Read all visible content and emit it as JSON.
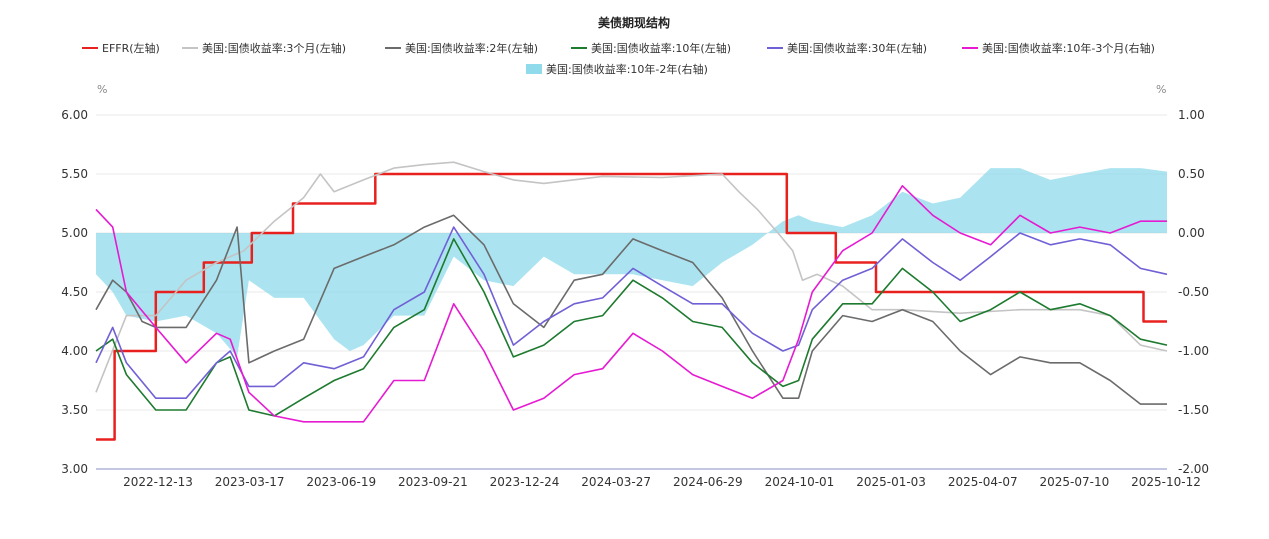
{
  "chart_data": {
    "type": "line",
    "title": "美债期现结构",
    "y_left": {
      "unit": "%",
      "ylim": [
        3.0,
        6.0
      ],
      "ticks": [
        "3.00",
        "3.50",
        "4.00",
        "4.50",
        "5.00",
        "5.50",
        "6.00"
      ]
    },
    "y_right": {
      "unit": "%",
      "ylim": [
        -2.0,
        1.0
      ],
      "ticks": [
        "-2.00",
        "-1.50",
        "-1.00",
        "-0.50",
        "0.00",
        "0.50",
        "1.00"
      ]
    },
    "x_ticks": [
      "2022-12-13",
      "2023-03-17",
      "2023-06-19",
      "2023-09-21",
      "2023-12-24",
      "2024-03-27",
      "2024-06-29",
      "2024-10-01",
      "2025-01-03",
      "2025-04-07",
      "2025-07-10",
      "2025-10-12"
    ],
    "x_range": [
      "2022-10-15",
      "2025-10-12"
    ],
    "grid": "horizontal",
    "legend_position": "top",
    "series": [
      {
        "name": "EFFR(左轴)",
        "color": "#e8201e",
        "axis": "left",
        "kind": "step",
        "points": [
          [
            "2022-10-15",
            3.25
          ],
          [
            "2022-11-03",
            3.25
          ],
          [
            "2022-11-03",
            4.0
          ],
          [
            "2022-12-15",
            4.0
          ],
          [
            "2022-12-15",
            4.5
          ],
          [
            "2023-02-02",
            4.5
          ],
          [
            "2023-02-02",
            4.75
          ],
          [
            "2023-03-23",
            4.75
          ],
          [
            "2023-03-23",
            5.0
          ],
          [
            "2023-05-04",
            5.0
          ],
          [
            "2023-05-04",
            5.25
          ],
          [
            "2023-07-27",
            5.25
          ],
          [
            "2023-07-27",
            5.5
          ],
          [
            "2024-09-19",
            5.5
          ],
          [
            "2024-09-19",
            5.0
          ],
          [
            "2024-11-08",
            5.0
          ],
          [
            "2024-11-08",
            4.75
          ],
          [
            "2024-12-19",
            4.75
          ],
          [
            "2024-12-19",
            4.5
          ],
          [
            "2025-09-18",
            4.5
          ],
          [
            "2025-09-18",
            4.25
          ],
          [
            "2025-10-12",
            4.25
          ]
        ]
      },
      {
        "name": "美国:国债收益率:3个月(左轴)",
        "color": "#c4c4c4",
        "axis": "left",
        "kind": "line",
        "points": [
          [
            "2022-10-15",
            3.65
          ],
          [
            "2022-11-15",
            4.3
          ],
          [
            "2022-12-15",
            4.3
          ],
          [
            "2023-01-15",
            4.6
          ],
          [
            "2023-02-15",
            4.75
          ],
          [
            "2023-03-15",
            4.85
          ],
          [
            "2023-04-15",
            5.1
          ],
          [
            "2023-05-15",
            5.3
          ],
          [
            "2023-06-01",
            5.5
          ],
          [
            "2023-06-15",
            5.35
          ],
          [
            "2023-07-15",
            5.45
          ],
          [
            "2023-08-15",
            5.55
          ],
          [
            "2023-09-15",
            5.58
          ],
          [
            "2023-10-15",
            5.6
          ],
          [
            "2023-11-15",
            5.52
          ],
          [
            "2023-12-15",
            5.45
          ],
          [
            "2024-01-15",
            5.42
          ],
          [
            "2024-03-15",
            5.48
          ],
          [
            "2024-05-15",
            5.47
          ],
          [
            "2024-07-15",
            5.5
          ],
          [
            "2024-08-01",
            5.35
          ],
          [
            "2024-08-20",
            5.2
          ],
          [
            "2024-09-10",
            5.0
          ],
          [
            "2024-09-25",
            4.85
          ],
          [
            "2024-10-05",
            4.6
          ],
          [
            "2024-10-20",
            4.65
          ],
          [
            "2024-11-15",
            4.55
          ],
          [
            "2024-12-15",
            4.35
          ],
          [
            "2025-01-15",
            4.35
          ],
          [
            "2025-03-15",
            4.32
          ],
          [
            "2025-05-15",
            4.35
          ],
          [
            "2025-07-15",
            4.35
          ],
          [
            "2025-08-15",
            4.3
          ],
          [
            "2025-09-15",
            4.05
          ],
          [
            "2025-10-12",
            4.0
          ]
        ]
      },
      {
        "name": "美国:国债收益率:2年(左轴)",
        "color": "#6b6b6b",
        "axis": "left",
        "kind": "line",
        "points": [
          [
            "2022-10-15",
            4.35
          ],
          [
            "2022-11-01",
            4.6
          ],
          [
            "2022-11-15",
            4.5
          ],
          [
            "2022-12-01",
            4.25
          ],
          [
            "2022-12-15",
            4.2
          ],
          [
            "2023-01-15",
            4.2
          ],
          [
            "2023-02-15",
            4.6
          ],
          [
            "2023-03-08",
            5.05
          ],
          [
            "2023-03-20",
            3.9
          ],
          [
            "2023-04-15",
            4.0
          ],
          [
            "2023-05-15",
            4.1
          ],
          [
            "2023-06-15",
            4.7
          ],
          [
            "2023-07-15",
            4.8
          ],
          [
            "2023-08-15",
            4.9
          ],
          [
            "2023-09-15",
            5.05
          ],
          [
            "2023-10-15",
            5.15
          ],
          [
            "2023-11-15",
            4.9
          ],
          [
            "2023-12-15",
            4.4
          ],
          [
            "2024-01-15",
            4.2
          ],
          [
            "2024-02-15",
            4.6
          ],
          [
            "2024-03-15",
            4.65
          ],
          [
            "2024-04-15",
            4.95
          ],
          [
            "2024-05-15",
            4.85
          ],
          [
            "2024-06-15",
            4.75
          ],
          [
            "2024-07-15",
            4.45
          ],
          [
            "2024-08-15",
            4.0
          ],
          [
            "2024-09-15",
            3.6
          ],
          [
            "2024-10-01",
            3.6
          ],
          [
            "2024-10-15",
            4.0
          ],
          [
            "2024-11-15",
            4.3
          ],
          [
            "2024-12-15",
            4.25
          ],
          [
            "2025-01-15",
            4.35
          ],
          [
            "2025-02-15",
            4.25
          ],
          [
            "2025-03-15",
            4.0
          ],
          [
            "2025-04-15",
            3.8
          ],
          [
            "2025-05-15",
            3.95
          ],
          [
            "2025-06-15",
            3.9
          ],
          [
            "2025-07-15",
            3.9
          ],
          [
            "2025-08-15",
            3.75
          ],
          [
            "2025-09-15",
            3.55
          ],
          [
            "2025-10-12",
            3.55
          ]
        ]
      },
      {
        "name": "美国:国债收益率:10年(左轴)",
        "color": "#1d7a2f",
        "axis": "left",
        "kind": "line",
        "points": [
          [
            "2022-10-15",
            4.0
          ],
          [
            "2022-11-01",
            4.1
          ],
          [
            "2022-11-15",
            3.8
          ],
          [
            "2022-12-15",
            3.5
          ],
          [
            "2023-01-15",
            3.5
          ],
          [
            "2023-02-15",
            3.9
          ],
          [
            "2023-03-01",
            3.95
          ],
          [
            "2023-03-20",
            3.5
          ],
          [
            "2023-04-15",
            3.45
          ],
          [
            "2023-05-15",
            3.6
          ],
          [
            "2023-06-15",
            3.75
          ],
          [
            "2023-07-15",
            3.85
          ],
          [
            "2023-08-15",
            4.2
          ],
          [
            "2023-09-15",
            4.35
          ],
          [
            "2023-10-15",
            4.95
          ],
          [
            "2023-11-15",
            4.5
          ],
          [
            "2023-12-15",
            3.95
          ],
          [
            "2024-01-15",
            4.05
          ],
          [
            "2024-02-15",
            4.25
          ],
          [
            "2024-03-15",
            4.3
          ],
          [
            "2024-04-15",
            4.6
          ],
          [
            "2024-05-15",
            4.45
          ],
          [
            "2024-06-15",
            4.25
          ],
          [
            "2024-07-15",
            4.2
          ],
          [
            "2024-08-15",
            3.9
          ],
          [
            "2024-09-15",
            3.7
          ],
          [
            "2024-10-01",
            3.75
          ],
          [
            "2024-10-15",
            4.1
          ],
          [
            "2024-11-15",
            4.4
          ],
          [
            "2024-12-15",
            4.4
          ],
          [
            "2025-01-15",
            4.7
          ],
          [
            "2025-02-15",
            4.5
          ],
          [
            "2025-03-15",
            4.25
          ],
          [
            "2025-04-15",
            4.35
          ],
          [
            "2025-05-15",
            4.5
          ],
          [
            "2025-06-15",
            4.35
          ],
          [
            "2025-07-15",
            4.4
          ],
          [
            "2025-08-15",
            4.3
          ],
          [
            "2025-09-15",
            4.1
          ],
          [
            "2025-10-12",
            4.05
          ]
        ]
      },
      {
        "name": "美国:国债收益率:30年(左轴)",
        "color": "#7060d6",
        "axis": "left",
        "kind": "line",
        "points": [
          [
            "2022-10-15",
            3.9
          ],
          [
            "2022-11-01",
            4.2
          ],
          [
            "2022-11-15",
            3.9
          ],
          [
            "2022-12-15",
            3.6
          ],
          [
            "2023-01-15",
            3.6
          ],
          [
            "2023-02-15",
            3.9
          ],
          [
            "2023-03-01",
            4.0
          ],
          [
            "2023-03-20",
            3.7
          ],
          [
            "2023-04-15",
            3.7
          ],
          [
            "2023-05-15",
            3.9
          ],
          [
            "2023-06-15",
            3.85
          ],
          [
            "2023-07-15",
            3.95
          ],
          [
            "2023-08-15",
            4.35
          ],
          [
            "2023-09-15",
            4.5
          ],
          [
            "2023-10-15",
            5.05
          ],
          [
            "2023-11-15",
            4.65
          ],
          [
            "2023-12-15",
            4.05
          ],
          [
            "2024-01-15",
            4.25
          ],
          [
            "2024-02-15",
            4.4
          ],
          [
            "2024-03-15",
            4.45
          ],
          [
            "2024-04-15",
            4.7
          ],
          [
            "2024-05-15",
            4.55
          ],
          [
            "2024-06-15",
            4.4
          ],
          [
            "2024-07-15",
            4.4
          ],
          [
            "2024-08-15",
            4.15
          ],
          [
            "2024-09-15",
            4.0
          ],
          [
            "2024-10-01",
            4.05
          ],
          [
            "2024-10-15",
            4.35
          ],
          [
            "2024-11-15",
            4.6
          ],
          [
            "2024-12-15",
            4.7
          ],
          [
            "2025-01-15",
            4.95
          ],
          [
            "2025-02-15",
            4.75
          ],
          [
            "2025-03-15",
            4.6
          ],
          [
            "2025-04-15",
            4.8
          ],
          [
            "2025-05-15",
            5.0
          ],
          [
            "2025-06-15",
            4.9
          ],
          [
            "2025-07-15",
            4.95
          ],
          [
            "2025-08-15",
            4.9
          ],
          [
            "2025-09-15",
            4.7
          ],
          [
            "2025-10-12",
            4.65
          ]
        ]
      },
      {
        "name": "美国:国债收益率:10年-3个月(右轴)",
        "color": "#e61ad2",
        "axis": "right",
        "kind": "line",
        "points": [
          [
            "2022-10-15",
            0.2
          ],
          [
            "2022-11-01",
            0.05
          ],
          [
            "2022-11-15",
            -0.5
          ],
          [
            "2022-12-15",
            -0.8
          ],
          [
            "2023-01-15",
            -1.1
          ],
          [
            "2023-02-15",
            -0.85
          ],
          [
            "2023-03-01",
            -0.9
          ],
          [
            "2023-03-20",
            -1.35
          ],
          [
            "2023-04-15",
            -1.55
          ],
          [
            "2023-05-15",
            -1.6
          ],
          [
            "2023-06-15",
            -1.6
          ],
          [
            "2023-07-15",
            -1.6
          ],
          [
            "2023-08-15",
            -1.25
          ],
          [
            "2023-09-15",
            -1.25
          ],
          [
            "2023-10-15",
            -0.6
          ],
          [
            "2023-11-15",
            -1.0
          ],
          [
            "2023-12-15",
            -1.5
          ],
          [
            "2024-01-15",
            -1.4
          ],
          [
            "2024-02-15",
            -1.2
          ],
          [
            "2024-03-15",
            -1.15
          ],
          [
            "2024-04-15",
            -0.85
          ],
          [
            "2024-05-15",
            -1.0
          ],
          [
            "2024-06-15",
            -1.2
          ],
          [
            "2024-07-15",
            -1.3
          ],
          [
            "2024-08-15",
            -1.4
          ],
          [
            "2024-09-15",
            -1.25
          ],
          [
            "2024-10-01",
            -0.9
          ],
          [
            "2024-10-15",
            -0.5
          ],
          [
            "2024-11-15",
            -0.15
          ],
          [
            "2024-12-15",
            0.0
          ],
          [
            "2025-01-15",
            0.4
          ],
          [
            "2025-02-15",
            0.15
          ],
          [
            "2025-03-15",
            0.0
          ],
          [
            "2025-04-15",
            -0.1
          ],
          [
            "2025-05-15",
            0.15
          ],
          [
            "2025-06-15",
            0.0
          ],
          [
            "2025-07-15",
            0.05
          ],
          [
            "2025-08-15",
            0.0
          ],
          [
            "2025-09-15",
            0.1
          ],
          [
            "2025-10-12",
            0.1
          ]
        ]
      },
      {
        "name": "美国:国债收益率:10年-2年(右轴)",
        "color": "#8fdbeb",
        "axis": "right",
        "kind": "area",
        "baseline": 0,
        "points": [
          [
            "2022-10-15",
            -0.35
          ],
          [
            "2022-11-01",
            -0.5
          ],
          [
            "2022-11-15",
            -0.7
          ],
          [
            "2022-12-15",
            -0.75
          ],
          [
            "2023-01-15",
            -0.7
          ],
          [
            "2023-02-15",
            -0.85
          ],
          [
            "2023-03-08",
            -1.05
          ],
          [
            "2023-03-20",
            -0.4
          ],
          [
            "2023-04-15",
            -0.55
          ],
          [
            "2023-05-15",
            -0.55
          ],
          [
            "2023-06-15",
            -0.9
          ],
          [
            "2023-07-01",
            -1.0
          ],
          [
            "2023-07-15",
            -0.95
          ],
          [
            "2023-08-15",
            -0.7
          ],
          [
            "2023-09-15",
            -0.7
          ],
          [
            "2023-10-15",
            -0.2
          ],
          [
            "2023-11-15",
            -0.4
          ],
          [
            "2023-12-15",
            -0.45
          ],
          [
            "2024-01-15",
            -0.2
          ],
          [
            "2024-02-15",
            -0.35
          ],
          [
            "2024-03-15",
            -0.35
          ],
          [
            "2024-04-15",
            -0.35
          ],
          [
            "2024-05-15",
            -0.4
          ],
          [
            "2024-06-15",
            -0.45
          ],
          [
            "2024-07-15",
            -0.25
          ],
          [
            "2024-08-15",
            -0.1
          ],
          [
            "2024-09-15",
            0.1
          ],
          [
            "2024-10-01",
            0.15
          ],
          [
            "2024-10-15",
            0.1
          ],
          [
            "2024-11-15",
            0.05
          ],
          [
            "2024-12-15",
            0.15
          ],
          [
            "2025-01-15",
            0.35
          ],
          [
            "2025-02-15",
            0.25
          ],
          [
            "2025-03-15",
            0.3
          ],
          [
            "2025-04-15",
            0.55
          ],
          [
            "2025-05-15",
            0.55
          ],
          [
            "2025-06-15",
            0.45
          ],
          [
            "2025-07-15",
            0.5
          ],
          [
            "2025-08-15",
            0.55
          ],
          [
            "2025-09-15",
            0.55
          ],
          [
            "2025-10-12",
            0.52
          ]
        ]
      }
    ]
  }
}
